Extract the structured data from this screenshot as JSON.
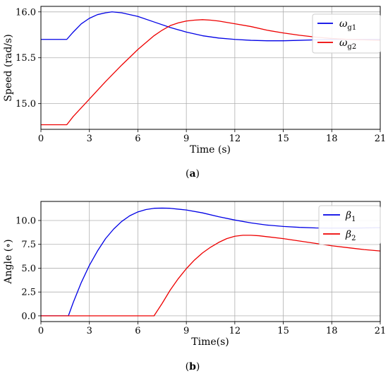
{
  "colors": {
    "blue": "#0000e6",
    "red": "#ee0000",
    "grid": "#b0b0b0",
    "axis": "#000000"
  },
  "chart_data": [
    {
      "type": "line",
      "caption": "(a)",
      "xlabel": "Time (s)",
      "ylabel": "Speed (rad/s)",
      "xlim": [
        0,
        21
      ],
      "ylim": [
        14.72,
        16.06
      ],
      "xticks": [
        0,
        3,
        6,
        9,
        12,
        15,
        18,
        21
      ],
      "yticks": [
        15.0,
        15.5,
        16.0
      ],
      "ytick_labels": [
        "15.0",
        "15.5",
        "16.0"
      ],
      "grid": true,
      "legend_position": "top-right",
      "series": [
        {
          "name": "ω_g1",
          "label_main": "ω",
          "label_sub": "g1",
          "color": "blue",
          "x": [
            0,
            1.6,
            2.0,
            2.5,
            3.0,
            3.5,
            4.0,
            4.4,
            5.0,
            6.0,
            7.0,
            8.0,
            9.0,
            10.0,
            11.0,
            12.0,
            13.0,
            14.0,
            15.0,
            16.0,
            17.0,
            18.0,
            19.0,
            20.0,
            21.0
          ],
          "y": [
            15.7,
            15.7,
            15.78,
            15.87,
            15.93,
            15.97,
            15.99,
            16.0,
            15.99,
            15.95,
            15.89,
            15.83,
            15.78,
            15.74,
            15.715,
            15.7,
            15.69,
            15.685,
            15.685,
            15.69,
            15.695,
            15.7,
            15.7,
            15.7,
            15.7
          ]
        },
        {
          "name": "ω_g2",
          "label_main": "ω",
          "label_sub": "g2",
          "color": "red",
          "x": [
            0,
            1.6,
            2.0,
            3.0,
            4.0,
            5.0,
            6.0,
            7.0,
            7.5,
            8.0,
            8.5,
            9.0,
            9.5,
            10.0,
            10.5,
            11.0,
            12.0,
            13.0,
            14.0,
            15.0,
            16.0,
            17.0,
            18.0,
            19.0,
            20.0,
            21.0
          ],
          "y": [
            14.77,
            14.77,
            14.86,
            15.05,
            15.24,
            15.42,
            15.59,
            15.74,
            15.8,
            15.85,
            15.88,
            15.9,
            15.91,
            15.915,
            15.91,
            15.9,
            15.87,
            15.84,
            15.8,
            15.77,
            15.745,
            15.725,
            15.71,
            15.7,
            15.695,
            15.69
          ]
        }
      ]
    },
    {
      "type": "line",
      "caption": "(b)",
      "xlabel": "Time(s)",
      "ylabel": "Angle (∘)",
      "xlim": [
        0,
        21
      ],
      "ylim": [
        -0.6,
        12.0
      ],
      "xticks": [
        0,
        3,
        6,
        9,
        12,
        15,
        18,
        21
      ],
      "yticks": [
        0.0,
        2.5,
        5.0,
        7.5,
        10.0
      ],
      "ytick_labels": [
        "0.0",
        "2.5",
        "5.0",
        "7.5",
        "10.0"
      ],
      "grid": true,
      "legend_position": "top-right",
      "series": [
        {
          "name": "β1",
          "label_main": "β",
          "label_sub": "1",
          "color": "blue",
          "x": [
            0,
            1.7,
            2.0,
            2.5,
            3.0,
            3.5,
            4.0,
            4.5,
            5.0,
            5.5,
            6.0,
            6.5,
            7.0,
            7.5,
            8.0,
            9.0,
            10.0,
            11.0,
            12.0,
            13.0,
            14.0,
            15.0,
            16.0,
            17.0,
            18.0,
            19.0,
            20.0,
            21.0
          ],
          "y": [
            0.0,
            0.0,
            1.4,
            3.5,
            5.3,
            6.8,
            8.1,
            9.1,
            9.9,
            10.5,
            10.9,
            11.15,
            11.28,
            11.3,
            11.28,
            11.1,
            10.8,
            10.4,
            10.05,
            9.75,
            9.52,
            9.38,
            9.28,
            9.22,
            9.2,
            9.2,
            9.22,
            9.25
          ]
        },
        {
          "name": "β2",
          "label_main": "β",
          "label_sub": "2",
          "color": "red",
          "x": [
            0,
            7.0,
            7.5,
            8.0,
            8.5,
            9.0,
            9.5,
            10.0,
            10.5,
            11.0,
            11.5,
            12.0,
            12.5,
            13.0,
            13.5,
            14.0,
            15.0,
            16.0,
            17.0,
            18.0,
            19.0,
            20.0,
            21.0
          ],
          "y": [
            0.0,
            0.0,
            1.3,
            2.7,
            3.9,
            4.95,
            5.85,
            6.6,
            7.2,
            7.7,
            8.1,
            8.35,
            8.45,
            8.45,
            8.4,
            8.3,
            8.1,
            7.85,
            7.6,
            7.35,
            7.15,
            6.95,
            6.8
          ]
        }
      ]
    }
  ]
}
